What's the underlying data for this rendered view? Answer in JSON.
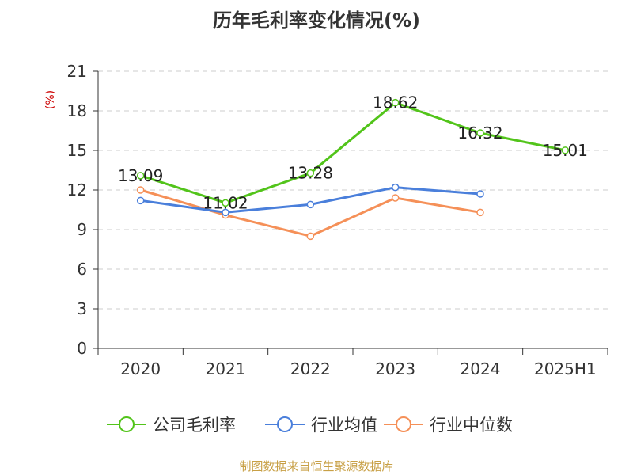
{
  "chart_data": {
    "type": "line",
    "title": "历年毛利率变化情况(%)",
    "ylabel": "(%)",
    "xlabel": "",
    "categories": [
      "2020",
      "2021",
      "2022",
      "2023",
      "2024",
      "2025H1"
    ],
    "ylim": [
      0,
      21
    ],
    "yticks": [
      0,
      3,
      6,
      9,
      12,
      15,
      18,
      21
    ],
    "grid": true,
    "legend_position": "bottom",
    "series": [
      {
        "name": "公司毛利率",
        "color": "#52c41a",
        "values": [
          13.09,
          11.02,
          13.28,
          18.62,
          16.32,
          15.01
        ],
        "labels": [
          "13.09",
          "11.02",
          "13.28",
          "18.62",
          "16.32",
          "15.01"
        ]
      },
      {
        "name": "行业均值",
        "color": "#4a7fdb",
        "values": [
          11.2,
          10.3,
          10.9,
          12.2,
          11.7,
          null
        ]
      },
      {
        "name": "行业中位数",
        "color": "#f59058",
        "values": [
          12.0,
          10.1,
          8.5,
          11.4,
          10.3,
          null
        ]
      }
    ],
    "source": "制图数据来自恒生聚源数据库"
  },
  "colors": {
    "unit_label": "#cc0000",
    "source": "#c8a046",
    "grid": "#cccccc",
    "axis": "#333333"
  }
}
